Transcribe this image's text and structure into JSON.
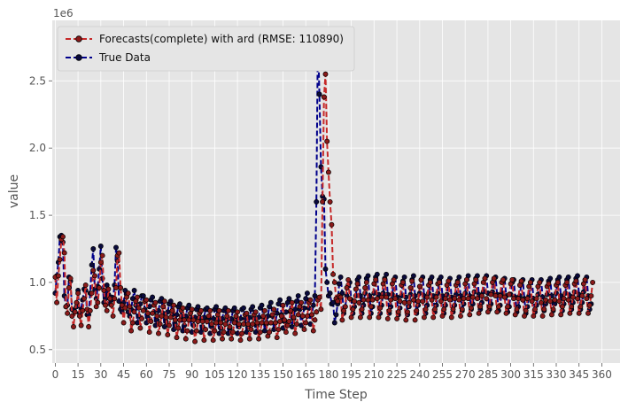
{
  "chart_data": {
    "type": "line",
    "title": "",
    "xlabel": "Time Step",
    "ylabel": "value",
    "y_offset_label": "1e6",
    "xlim": [
      -2,
      372
    ],
    "ylim": [
      0.4,
      2.95
    ],
    "x_ticks": [
      0,
      15,
      30,
      45,
      60,
      75,
      90,
      105,
      120,
      135,
      150,
      165,
      180,
      195,
      210,
      225,
      240,
      255,
      270,
      285,
      300,
      315,
      330,
      345,
      360
    ],
    "y_ticks": [
      0.5,
      1.0,
      1.5,
      2.0,
      2.5
    ],
    "y_tick_labels": [
      "0.5",
      "1.0",
      "1.5",
      "2.0",
      "2.5"
    ],
    "grid": true,
    "legend_position": "top-left",
    "series": [
      {
        "name": "Forecasts(complete) with ard (RMSE: 110890)",
        "color": "#c62828",
        "marker_fill": "#8b1a1a",
        "values": [
          1.04,
          0.85,
          1.05,
          1.17,
          1.32,
          1.34,
          1.22,
          0.82,
          0.77,
          0.96,
          1.03,
          0.75,
          0.67,
          0.78,
          0.85,
          0.92,
          0.75,
          0.68,
          0.79,
          0.88,
          0.98,
          0.8,
          0.67,
          0.79,
          0.92,
          1.09,
          1.05,
          0.82,
          0.85,
          0.96,
          1.15,
          1.2,
          0.94,
          0.83,
          0.79,
          0.95,
          0.88,
          0.83,
          0.75,
          0.88,
          0.96,
          1.2,
          1.22,
          0.96,
          0.83,
          0.7,
          0.81,
          0.89,
          0.92,
          0.82,
          0.64,
          0.7,
          0.78,
          0.86,
          0.89,
          0.81,
          0.66,
          0.73,
          0.79,
          0.86,
          0.87,
          0.77,
          0.63,
          0.71,
          0.77,
          0.83,
          0.85,
          0.75,
          0.62,
          0.69,
          0.75,
          0.82,
          0.86,
          0.74,
          0.61,
          0.68,
          0.74,
          0.79,
          0.83,
          0.72,
          0.59,
          0.66,
          0.72,
          0.79,
          0.81,
          0.72,
          0.58,
          0.64,
          0.72,
          0.77,
          0.8,
          0.72,
          0.56,
          0.64,
          0.71,
          0.77,
          0.79,
          0.71,
          0.57,
          0.65,
          0.71,
          0.75,
          0.79,
          0.69,
          0.57,
          0.64,
          0.7,
          0.76,
          0.79,
          0.7,
          0.58,
          0.63,
          0.69,
          0.75,
          0.79,
          0.67,
          0.58,
          0.63,
          0.7,
          0.75,
          0.78,
          0.69,
          0.57,
          0.62,
          0.69,
          0.76,
          0.77,
          0.69,
          0.58,
          0.65,
          0.69,
          0.76,
          0.78,
          0.7,
          0.58,
          0.63,
          0.7,
          0.75,
          0.79,
          0.7,
          0.6,
          0.63,
          0.7,
          0.76,
          0.8,
          0.7,
          0.59,
          0.65,
          0.71,
          0.75,
          0.83,
          0.72,
          0.63,
          0.68,
          0.71,
          0.79,
          0.85,
          0.74,
          0.62,
          0.69,
          0.76,
          0.82,
          0.85,
          0.75,
          0.65,
          0.7,
          0.75,
          0.85,
          0.87,
          0.76,
          0.64,
          0.72,
          0.78,
          0.87,
          0.89,
          0.8,
          1.6,
          2.38,
          2.55,
          2.05,
          1.82,
          1.6,
          1.43,
          1.06,
          1.0,
          0.88,
          0.86,
          0.9,
          0.89,
          0.72,
          0.79,
          0.82,
          0.96,
          1.02,
          0.88,
          0.74,
          0.8,
          0.86,
          0.95,
          0.99,
          0.85,
          0.74,
          0.8,
          0.87,
          0.96,
          1.0,
          0.87,
          0.74,
          0.82,
          0.87,
          0.99,
          1.02,
          0.88,
          0.74,
          0.81,
          0.89,
          0.99,
          1.02,
          0.89,
          0.73,
          0.79,
          0.87,
          0.99,
          1.02,
          0.88,
          0.73,
          0.78,
          0.86,
          0.98,
          1.0,
          0.85,
          0.72,
          0.78,
          0.85,
          0.96,
          1.01,
          0.87,
          0.72,
          0.79,
          0.86,
          0.97,
          1.02,
          0.86,
          0.74,
          0.8,
          0.89,
          0.98,
          1.0,
          0.87,
          0.74,
          0.8,
          0.89,
          0.99,
          1.0,
          0.86,
          0.75,
          0.8,
          0.88,
          0.98,
          1.01,
          0.87,
          0.74,
          0.8,
          0.88,
          0.98,
          1.0,
          0.87,
          0.75,
          0.8,
          0.88,
          0.99,
          1.02,
          0.88,
          0.76,
          0.81,
          0.89,
          0.99,
          1.02,
          0.88,
          0.77,
          0.82,
          0.9,
          1.0,
          1.03,
          0.88,
          0.78,
          0.82,
          0.91,
          1.0,
          1.03,
          0.9,
          0.78,
          0.82,
          0.9,
          1.0,
          1.02,
          0.89,
          0.77,
          0.82,
          0.91,
          0.99,
          1.02,
          0.88,
          0.76,
          0.8,
          0.88,
          0.98,
          1.01,
          0.87,
          0.75,
          0.79,
          0.88,
          0.97,
          1.0,
          0.86,
          0.75,
          0.8,
          0.88,
          0.97,
          1.0,
          0.85,
          0.75,
          0.8,
          0.87,
          0.97,
          0.99,
          0.86,
          0.76,
          0.8,
          0.87,
          0.98,
          1.0,
          0.86,
          0.76,
          0.82,
          0.88,
          0.98,
          1.0,
          0.87,
          0.77,
          0.82,
          0.89,
          0.99,
          1.01,
          0.88,
          0.77,
          0.82,
          0.9,
          0.99,
          1.02,
          0.88,
          0.77,
          0.83,
          0.9,
          1.0
        ]
      },
      {
        "name": "True Data",
        "color": "#00008b",
        "marker_fill": "#0a0a3c",
        "values": [
          0.92,
          1.05,
          1.15,
          1.34,
          1.35,
          1.3,
          0.9,
          0.82,
          0.83,
          1.04,
          1.01,
          0.8,
          0.79,
          0.78,
          0.82,
          0.94,
          0.77,
          0.8,
          0.87,
          0.95,
          0.94,
          0.76,
          0.76,
          0.92,
          1.13,
          1.25,
          0.95,
          0.88,
          0.97,
          1.1,
          1.27,
          1.03,
          0.85,
          0.88,
          0.98,
          0.91,
          0.84,
          0.89,
          0.87,
          0.98,
          1.26,
          1.16,
          0.86,
          0.8,
          0.78,
          0.85,
          0.94,
          0.91,
          0.78,
          0.75,
          0.8,
          0.88,
          0.94,
          0.83,
          0.7,
          0.75,
          0.84,
          0.9,
          0.9,
          0.8,
          0.7,
          0.74,
          0.82,
          0.87,
          0.89,
          0.78,
          0.68,
          0.72,
          0.79,
          0.86,
          0.88,
          0.77,
          0.67,
          0.71,
          0.78,
          0.84,
          0.86,
          0.76,
          0.65,
          0.69,
          0.76,
          0.82,
          0.84,
          0.75,
          0.64,
          0.68,
          0.75,
          0.81,
          0.83,
          0.74,
          0.63,
          0.68,
          0.74,
          0.8,
          0.82,
          0.74,
          0.63,
          0.67,
          0.74,
          0.8,
          0.81,
          0.73,
          0.62,
          0.67,
          0.73,
          0.8,
          0.82,
          0.73,
          0.62,
          0.66,
          0.73,
          0.79,
          0.81,
          0.72,
          0.62,
          0.66,
          0.73,
          0.79,
          0.81,
          0.72,
          0.62,
          0.67,
          0.73,
          0.8,
          0.81,
          0.73,
          0.63,
          0.67,
          0.74,
          0.8,
          0.82,
          0.73,
          0.63,
          0.68,
          0.74,
          0.81,
          0.83,
          0.74,
          0.64,
          0.69,
          0.75,
          0.82,
          0.85,
          0.75,
          0.65,
          0.7,
          0.77,
          0.84,
          0.87,
          0.76,
          0.66,
          0.71,
          0.78,
          0.85,
          0.88,
          0.78,
          0.67,
          0.73,
          0.8,
          0.86,
          0.9,
          0.8,
          0.68,
          0.75,
          0.81,
          0.88,
          0.92,
          0.81,
          0.69,
          0.76,
          0.83,
          0.9,
          1.6,
          2.86,
          2.4,
          1.86,
          1.64,
          1.62,
          1.1,
          1.0,
          0.9,
          0.92,
          0.84,
          0.85,
          0.7,
          0.76,
          0.84,
          0.99,
          1.04,
          0.92,
          0.77,
          0.82,
          0.9,
          0.98,
          1.0,
          0.87,
          0.77,
          0.82,
          0.9,
          1.02,
          1.04,
          0.9,
          0.77,
          0.83,
          0.92,
          1.03,
          1.05,
          0.9,
          0.77,
          0.82,
          0.92,
          1.04,
          1.06,
          0.91,
          0.77,
          0.83,
          0.92,
          1.03,
          1.06,
          0.91,
          0.77,
          0.82,
          0.91,
          1.02,
          1.04,
          0.89,
          0.76,
          0.81,
          0.9,
          1.01,
          1.04,
          0.89,
          0.76,
          0.82,
          0.91,
          1.02,
          1.05,
          0.9,
          0.77,
          0.83,
          0.92,
          1.02,
          1.04,
          0.9,
          0.77,
          0.83,
          0.92,
          1.02,
          1.04,
          0.9,
          0.78,
          0.83,
          0.92,
          1.02,
          1.04,
          0.9,
          0.77,
          0.83,
          0.91,
          1.01,
          1.03,
          0.89,
          0.78,
          0.83,
          0.91,
          1.01,
          1.04,
          0.9,
          0.79,
          0.84,
          0.92,
          1.02,
          1.05,
          0.9,
          0.8,
          0.84,
          0.93,
          1.03,
          1.05,
          0.91,
          0.8,
          0.85,
          0.93,
          1.03,
          1.05,
          0.92,
          0.8,
          0.84,
          0.93,
          1.02,
          1.04,
          0.91,
          0.79,
          0.83,
          0.92,
          1.01,
          1.03,
          0.9,
          0.78,
          0.82,
          0.91,
          1.0,
          1.02,
          0.89,
          0.78,
          0.82,
          0.9,
          1.0,
          1.02,
          0.88,
          0.77,
          0.82,
          0.9,
          1.0,
          1.02,
          0.88,
          0.78,
          0.83,
          0.91,
          1.0,
          1.02,
          0.89,
          0.79,
          0.84,
          0.91,
          1.01,
          1.03,
          0.9,
          0.79,
          0.84,
          0.92,
          1.02,
          1.04,
          0.9,
          0.79,
          0.84,
          0.92,
          1.02,
          1.04,
          0.9,
          0.8,
          0.85,
          0.93,
          1.03,
          1.05,
          0.91,
          0.8,
          0.85,
          0.93,
          1.02,
          1.04,
          0.9,
          0.8,
          0.84
        ]
      }
    ]
  }
}
